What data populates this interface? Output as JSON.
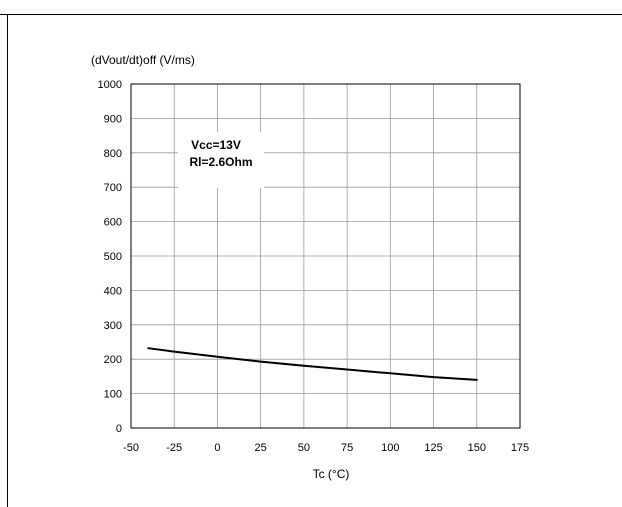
{
  "chart_data": {
    "type": "line",
    "title": "",
    "ylabel": "(dVout/dt)off (V/ms)",
    "xlabel": "Tc (°C)",
    "xlim": [
      -50,
      175
    ],
    "ylim": [
      0,
      1000
    ],
    "xticks": [
      -50,
      -25,
      0,
      25,
      50,
      75,
      100,
      125,
      150,
      175
    ],
    "yticks": [
      0,
      100,
      200,
      300,
      400,
      500,
      600,
      700,
      800,
      900,
      1000
    ],
    "grid": true,
    "legend": "none",
    "annotations": [
      "Vcc=13V",
      "Rl=2.6Ohm"
    ],
    "series": [
      {
        "x": [
          -40,
          -25,
          0,
          25,
          50,
          75,
          100,
          125,
          150
        ],
        "y": [
          232,
          222,
          207,
          193,
          181,
          170,
          159,
          148,
          140
        ],
        "color": "#000000"
      }
    ]
  }
}
